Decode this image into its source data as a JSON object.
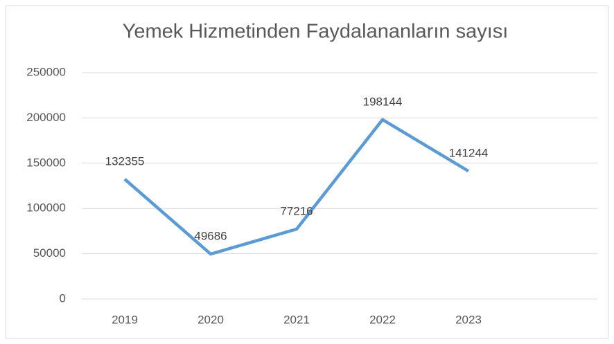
{
  "chart_data": {
    "type": "line",
    "title": "Yemek Hizmetinden Faydalananların sayısı",
    "categories": [
      "2019",
      "2020",
      "2021",
      "2022",
      "2023",
      null
    ],
    "series": [
      {
        "color": "#5b9bd5",
        "values": [
          132355,
          49686,
          77216,
          198144,
          141244,
          null
        ]
      }
    ],
    "ylim": [
      0,
      250000
    ],
    "yticks": [
      0,
      50000,
      100000,
      150000,
      200000,
      250000
    ],
    "grid": true
  }
}
